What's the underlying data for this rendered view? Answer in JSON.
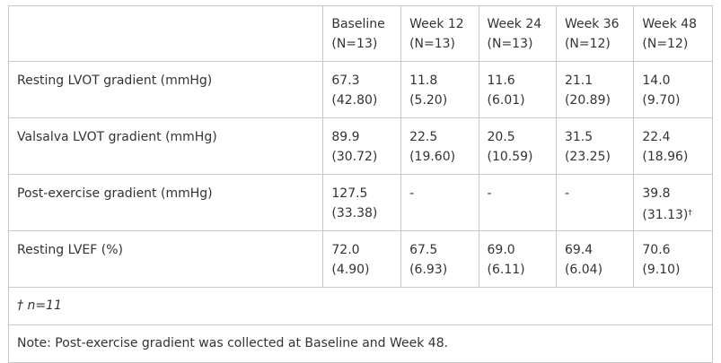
{
  "columns": [
    {
      "label": "Baseline",
      "n": "(N=13)"
    },
    {
      "label": "Week 12",
      "n": "(N=13)"
    },
    {
      "label": "Week 24",
      "n": "(N=13)"
    },
    {
      "label": "Week 36",
      "n": "(N=12)"
    },
    {
      "label": "Week 48",
      "n": "(N=12)"
    }
  ],
  "rows": [
    {
      "label": "Resting LVOT gradient (mmHg)",
      "cells": [
        {
          "value": "67.3",
          "sd": "(42.80)"
        },
        {
          "value": "11.8",
          "sd": "(5.20)"
        },
        {
          "value": "11.6",
          "sd": "(6.01)"
        },
        {
          "value": "21.1",
          "sd": "(20.89)"
        },
        {
          "value": "14.0",
          "sd": "(9.70)"
        }
      ]
    },
    {
      "label": "Valsalva LVOT gradient (mmHg)",
      "cells": [
        {
          "value": "89.9",
          "sd": "(30.72)"
        },
        {
          "value": "22.5",
          "sd": "(19.60)"
        },
        {
          "value": "20.5",
          "sd": "(10.59)"
        },
        {
          "value": "31.5",
          "sd": "(23.25)"
        },
        {
          "value": "22.4",
          "sd": "(18.96)"
        }
      ]
    },
    {
      "label": "Post-exercise gradient (mmHg)",
      "cells": [
        {
          "value": "127.5",
          "sd": "(33.38)"
        },
        {
          "value": "-",
          "sd": ""
        },
        {
          "value": "-",
          "sd": ""
        },
        {
          "value": "-",
          "sd": ""
        },
        {
          "value": "39.8",
          "sd": "(31.13)",
          "mark": "†"
        }
      ]
    },
    {
      "label": "Resting LVEF (%)",
      "cells": [
        {
          "value": "72.0",
          "sd": "(4.90)"
        },
        {
          "value": "67.5",
          "sd": "(6.93)"
        },
        {
          "value": "69.0",
          "sd": "(6.11)"
        },
        {
          "value": "69.4",
          "sd": "(6.04)"
        },
        {
          "value": "70.6",
          "sd": "(9.10)"
        }
      ]
    }
  ],
  "footnote_mark": "† n=11",
  "note": "Note: Post-exercise gradient was collected at Baseline and Week 48."
}
